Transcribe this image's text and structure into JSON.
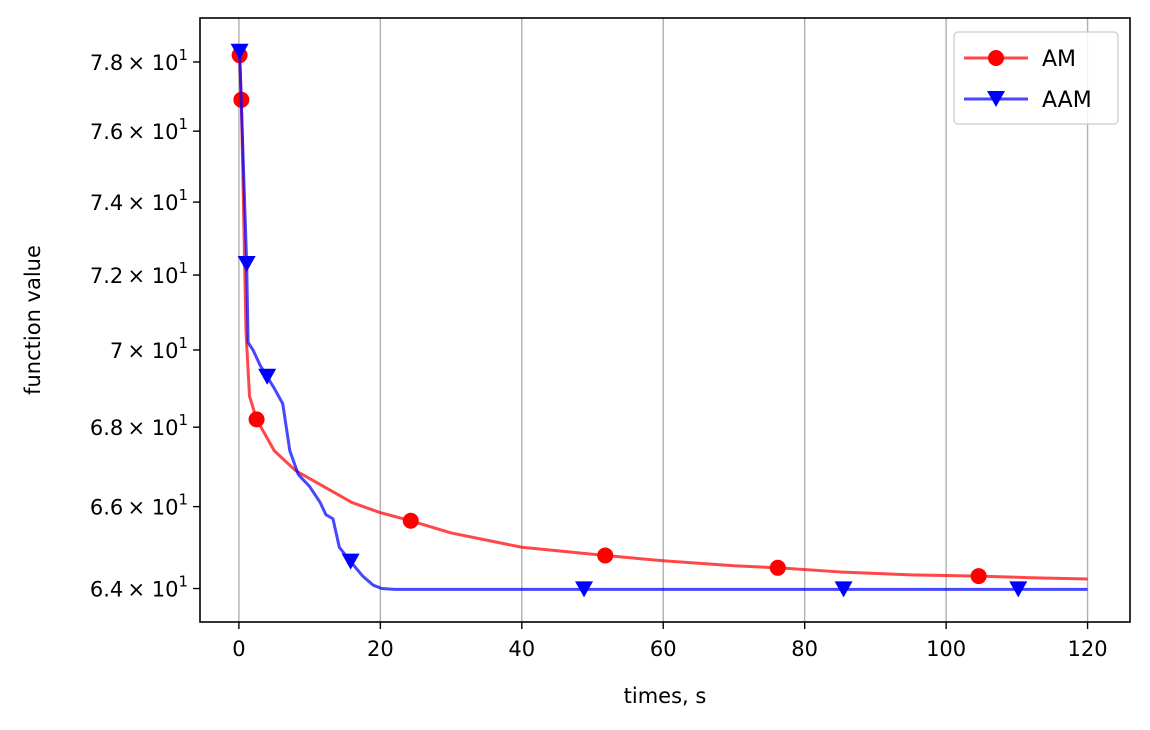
{
  "chart_data": {
    "type": "line",
    "xlabel": "times, s",
    "ylabel": "function value",
    "xlim": [
      -5.5,
      126
    ],
    "ylim": [
      63.2,
      79.3
    ],
    "y_scale": "log",
    "x_ticks": [
      0,
      20,
      40,
      60,
      80,
      100,
      120
    ],
    "y_ticks": [
      {
        "value": 64,
        "mantissa": "6.4"
      },
      {
        "value": 66,
        "mantissa": "6.6"
      },
      {
        "value": 68,
        "mantissa": "6.8"
      },
      {
        "value": 70,
        "mantissa": "7"
      },
      {
        "value": 72,
        "mantissa": "7.2"
      },
      {
        "value": 74,
        "mantissa": "7.4"
      },
      {
        "value": 76,
        "mantissa": "7.6"
      },
      {
        "value": 78,
        "mantissa": "7.8"
      }
    ],
    "y_tick_suffix": "× 10",
    "y_tick_exponent": "1",
    "grid": "vertical",
    "legend_position": "top-right",
    "series": [
      {
        "name": "AM",
        "color": "#ff0000",
        "marker": "circle",
        "x": [
          0.1,
          0.35,
          1.0,
          1.5,
          2.5,
          5,
          8,
          12,
          16,
          20,
          24.3,
          30,
          40,
          51.8,
          60,
          70,
          76.2,
          85,
          95,
          104.6,
          112,
          120
        ],
        "y": [
          78.2,
          76.9,
          70.5,
          68.8,
          68.2,
          67.4,
          66.9,
          66.5,
          66.1,
          65.85,
          65.65,
          65.35,
          65.0,
          64.8,
          64.67,
          64.55,
          64.5,
          64.4,
          64.33,
          64.3,
          64.26,
          64.23
        ],
        "marker_points": [
          {
            "x": 0.1,
            "y": 78.2
          },
          {
            "x": 0.35,
            "y": 76.9
          },
          {
            "x": 2.5,
            "y": 68.2
          },
          {
            "x": 24.3,
            "y": 65.65
          },
          {
            "x": 51.8,
            "y": 64.8
          },
          {
            "x": 76.2,
            "y": 64.5
          },
          {
            "x": 104.6,
            "y": 64.3
          }
        ]
      },
      {
        "name": "AAM",
        "color": "#0000ff",
        "marker": "triangle-down",
        "x": [
          0.1,
          1.1,
          1.3,
          2,
          3,
          4,
          5,
          6.2,
          7.2,
          8.4,
          10,
          11.5,
          12.3,
          13.3,
          14.2,
          15.8,
          17.5,
          19.0,
          20.2,
          22,
          30,
          48.8,
          60,
          85.5,
          100,
          110.2,
          120
        ],
        "y": [
          78.3,
          72.3,
          70.2,
          70.0,
          69.6,
          69.3,
          69.0,
          68.6,
          67.4,
          66.8,
          66.5,
          66.1,
          65.8,
          65.7,
          65.0,
          64.65,
          64.3,
          64.08,
          64.0,
          63.98,
          63.98,
          63.98,
          63.98,
          63.98,
          63.98,
          63.98,
          63.98
        ],
        "marker_points": [
          {
            "x": 0.1,
            "y": 78.3
          },
          {
            "x": 1.1,
            "y": 72.3
          },
          {
            "x": 4,
            "y": 69.3
          },
          {
            "x": 15.8,
            "y": 64.65
          },
          {
            "x": 48.8,
            "y": 63.98
          },
          {
            "x": 85.5,
            "y": 63.98
          },
          {
            "x": 110.2,
            "y": 63.98
          }
        ]
      }
    ]
  }
}
